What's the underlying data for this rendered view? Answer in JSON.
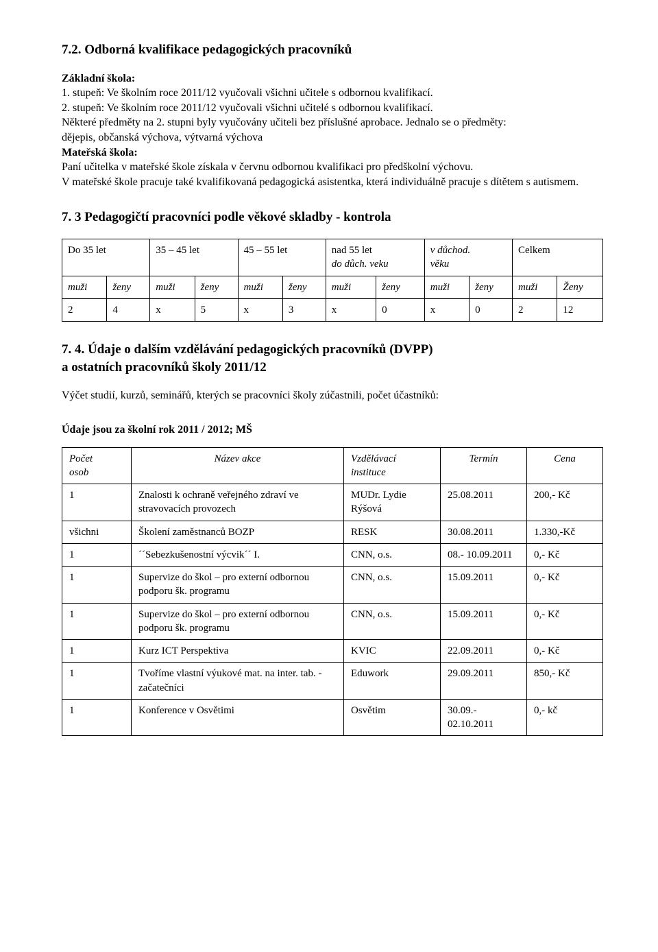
{
  "s72": {
    "heading": "7.2. Odborná kvalifikace pedagogických pracovníků",
    "zs_label": "Základní škola:",
    "zs_line1": "1. stupeň: Ve školním roce 2011/12  vyučovali všichni učitele s odbornou kvalifikací.",
    "zs_line2": "2. stupeň: Ve školním roce 2011/12 vyučovali všichni učitelé s odbornou kvalifikací.",
    "predmety1": "Některé předměty na 2. stupni byly vyučovány učiteli bez příslušné aprobace. Jednalo se o předměty:",
    "predmety2": "dějepis, občanská výchova, výtvarná výchova",
    "ms_label": "Mateřská škola:",
    "ms_line1": "Paní učitelka v mateřské škole získala v červnu odbornou kvalifikaci pro předškolní výchovu.",
    "ms_line2": "V mateřské škole pracuje také kvalifikovaná pedagogická asistentka, která individuálně pracuje s dítětem s autismem."
  },
  "s73": {
    "heading": "7. 3 Pedagogičtí pracovníci podle věkové skladby - kontrola",
    "header": {
      "c1": "Do 35 let",
      "c2": "35 – 45 let",
      "c3": "45 – 55 let",
      "c4a": "nad 55 let",
      "c4b": "do důch. veku",
      "c5a": "v důchod.",
      "c5b": "věku",
      "c6": "Celkem"
    },
    "labels": {
      "muzi": "muži",
      "zeny": "ženy",
      "zeny_cap": "Ženy"
    },
    "row": [
      "2",
      "4",
      "x",
      "5",
      "x",
      "3",
      "x",
      "0",
      "x",
      "0",
      "2",
      "12"
    ]
  },
  "s74": {
    "heading_l1": "7. 4. Údaje o dalším vzdělávání pedagogických pracovníků (DVPP)",
    "heading_l2": " a ostatních pracovníků školy 2011/12",
    "line": "Výčet studií, kurzů, seminářů, kterých se pracovníci školy zúčastnili, počet účastníků:",
    "subhead": "Údaje jsou za školní rok 2011 / 2012;  MŠ",
    "cols": {
      "pocet_l1": "Počet",
      "pocet_l2": "osob",
      "nazev": "Název akce",
      "inst_l1": "Vzdělávací",
      "inst_l2": "instituce",
      "termin": "Termín",
      "cena": "Cena"
    },
    "rows": [
      {
        "pocet": "1",
        "nazev": "Znalosti k ochraně veřejného zdraví ve stravovacích provozech",
        "inst": "MUDr. Lydie Rýšová",
        "termin": "25.08.2011",
        "cena": "200,- Kč"
      },
      {
        "pocet": "všichni",
        "nazev": "Školení zaměstnanců BOZP",
        "inst": "RESK",
        "termin": "30.08.2011",
        "cena": "1.330,-Kč"
      },
      {
        "pocet": "1",
        "nazev": "´´Sebezkušenostní výcvik´´ I.",
        "inst": "CNN, o.s.",
        "termin": "08.- 10.09.2011",
        "cena": "0,- Kč"
      },
      {
        "pocet": "1",
        "nazev": "Supervize do škol – pro externí odbornou podporu šk. programu",
        "inst": "CNN, o.s.",
        "termin": "15.09.2011",
        "cena": "0,- Kč"
      },
      {
        "pocet": "1",
        "nazev": "Supervize do škol – pro externí odbornou podporu šk. programu",
        "inst": "CNN, o.s.",
        "termin": "15.09.2011",
        "cena": "0,- Kč"
      },
      {
        "pocet": "1",
        "nazev": "Kurz ICT Perspektiva",
        "inst": "KVIC",
        "termin": "22.09.2011",
        "cena": "0,- Kč"
      },
      {
        "pocet": "1",
        "nazev": "Tvoříme vlastní výukové mat. na inter. tab. - začatečníci",
        "inst": "Eduwork",
        "termin": "29.09.2011",
        "cena": "850,- Kč"
      },
      {
        "pocet": "1",
        "nazev": "Konference v Osvětimi",
        "inst": "Osvětim",
        "termin": "30.09.- 02.10.2011",
        "cena": "0,- kč"
      }
    ]
  }
}
